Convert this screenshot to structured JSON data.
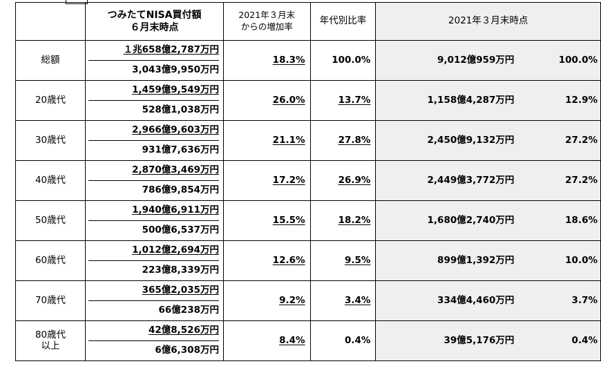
{
  "header": {
    "col_total_label": "つみたてNISA買付額",
    "col_total_sub": "６月末時点",
    "col_growth_label": "2021年３月末",
    "col_growth_sub": "からの増加率",
    "col_ratio_label": "年代別比率",
    "col_march_label": "2021年３月末時点"
  },
  "rows": [
    {
      "label": "総額",
      "label2": "",
      "amount_top": "１兆658億2,787万円",
      "amount_bottom": "3,043億9,950万円",
      "growth": "18.3%",
      "ratio": "100.0%",
      "ratio_underlined": false,
      "march_amount": "9,012億959万円",
      "march_ratio": "100.0%"
    },
    {
      "label": "20歳代",
      "label2": "",
      "amount_top": "1,459億9,549万円",
      "amount_bottom": "528億1,038万円",
      "growth": "26.0%",
      "ratio": "13.7%",
      "ratio_underlined": true,
      "march_amount": "1,158億4,287万円",
      "march_ratio": "12.9%"
    },
    {
      "label": "30歳代",
      "label2": "",
      "amount_top": "2,966億9,603万円",
      "amount_bottom": "931億7,636万円",
      "growth": "21.1%",
      "ratio": "27.8%",
      "ratio_underlined": true,
      "march_amount": "2,450億9,132万円",
      "march_ratio": "27.2%"
    },
    {
      "label": "40歳代",
      "label2": "",
      "amount_top": "2,870億3,469万円",
      "amount_bottom": "786億9,854万円",
      "growth": "17.2%",
      "ratio": "26.9%",
      "ratio_underlined": true,
      "march_amount": "2,449億3,772万円",
      "march_ratio": "27.2%"
    },
    {
      "label": "50歳代",
      "label2": "",
      "amount_top": "1,940億6,911万円",
      "amount_bottom": "500億6,537万円",
      "growth": "15.5%",
      "ratio": "18.2%",
      "ratio_underlined": true,
      "march_amount": "1,680億2,740万円",
      "march_ratio": "18.6%"
    },
    {
      "label": "60歳代",
      "label2": "",
      "amount_top": "1,012億2,694万円",
      "amount_bottom": "223億8,339万円",
      "growth": "12.6%",
      "ratio": "9.5%",
      "ratio_underlined": true,
      "march_amount": "899億1,392万円",
      "march_ratio": "10.0%"
    },
    {
      "label": "70歳代",
      "label2": "",
      "amount_top": "365億2,035万円",
      "amount_bottom": "66億238万円",
      "growth": "9.2%",
      "ratio": "3.4%",
      "ratio_underlined": true,
      "march_amount": "334億4,460万円",
      "march_ratio": "3.7%"
    },
    {
      "label": "80歳代",
      "label2": "以上",
      "amount_top": "42億8,526万円",
      "amount_bottom": "6億6,308万円",
      "growth": "8.4%",
      "ratio": "0.4%",
      "ratio_underlined": false,
      "march_amount": "39億5,176万円",
      "march_ratio": "0.4%"
    }
  ]
}
